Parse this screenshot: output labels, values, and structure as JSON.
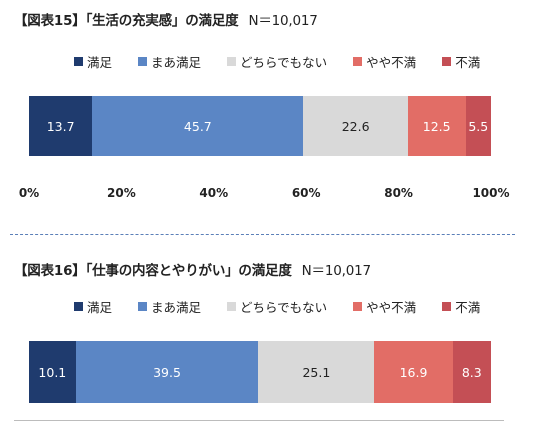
{
  "colors": {
    "manzoku": "#1f3b6e",
    "maa_manzoku": "#5b86c5",
    "dochira": "#d9d9d9",
    "yaya_fuman": "#e26d66",
    "fuman": "#c44f55"
  },
  "legend": [
    "満足",
    "まあ満足",
    "どちらでもない",
    "やや不満",
    "不満"
  ],
  "chart_data": [
    {
      "type": "bar",
      "title": "【図表15】「生活の充実感」の満足度",
      "n_label": "N＝10,017",
      "categories": [
        "満足",
        "まあ満足",
        "どちらでもない",
        "やや不満",
        "不満"
      ],
      "values": [
        13.7,
        45.7,
        22.6,
        12.5,
        5.5
      ],
      "labels": [
        "13.7",
        "45.7",
        "22.6",
        "12.5",
        "5.5"
      ],
      "xlim": [
        0,
        100
      ],
      "x_ticks": [
        "0%",
        "20%",
        "40%",
        "60%",
        "80%",
        "100%"
      ],
      "stacked": true,
      "orientation": "horizontal"
    },
    {
      "type": "bar",
      "title": "【図表16】「仕事の内容とやりがい」の満足度",
      "n_label": "N＝10,017",
      "categories": [
        "満足",
        "まあ満足",
        "どちらでもない",
        "やや不満",
        "不満"
      ],
      "values": [
        10.1,
        39.5,
        25.1,
        16.9,
        8.3
      ],
      "labels": [
        "10.1",
        "39.5",
        "25.1",
        "16.9",
        "8.3"
      ],
      "xlim": [
        0,
        100
      ],
      "stacked": true,
      "orientation": "horizontal"
    }
  ]
}
